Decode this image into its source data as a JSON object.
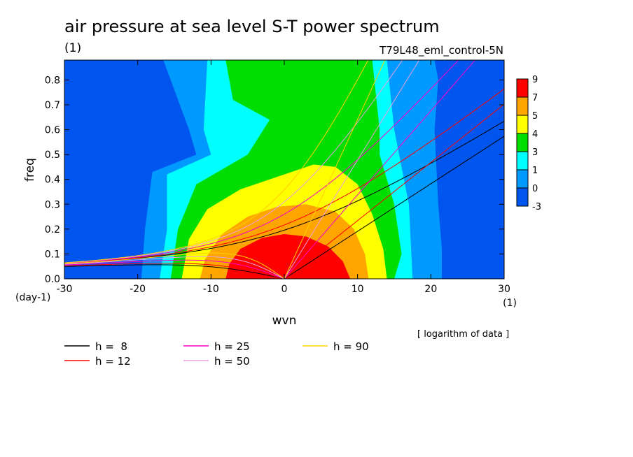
{
  "chart_data": {
    "type": "heatmap",
    "title": "air pressure at sea level S-T power spectrum",
    "subtitle": "T79L48_eml_control-5N",
    "title_unit": "(1)",
    "xlabel": "wvn",
    "xunit": "(1)",
    "ylabel": "freq",
    "yunit": "(day-1)",
    "xlim": [
      -30,
      30
    ],
    "ylim": [
      0,
      0.88
    ],
    "xticks": [
      -30,
      -20,
      -10,
      0,
      10,
      20,
      30
    ],
    "yticks": [
      0.0,
      0.1,
      0.2,
      0.3,
      0.4,
      0.5,
      0.6,
      0.7,
      0.8
    ],
    "xtick_labels": [
      "-30",
      "-20",
      "-10",
      "0",
      "10",
      "20",
      "30"
    ],
    "ytick_labels": [
      "0.0",
      "0.1",
      "0.2",
      "0.3",
      "0.4",
      "0.5",
      "0.6",
      "0.7",
      "0.8"
    ],
    "note": "[ logarithm of data ]",
    "colorbar": {
      "labels": [
        "9",
        "7",
        "5",
        "4",
        "3",
        "1",
        "0",
        "-3"
      ],
      "colors": [
        "#ff0000",
        "#ffa500",
        "#ffff00",
        "#00dd00",
        "#00ffff",
        "#0099ff",
        "#0055ee"
      ]
    },
    "fill_levels": [
      {
        "color": "#0055ee",
        "points": [
          [
            -30,
            0
          ],
          [
            30,
            0
          ],
          [
            30,
            0.88
          ],
          [
            -30,
            0.88
          ]
        ]
      },
      {
        "color": "#0099ff",
        "points": [
          [
            -19.5,
            0
          ],
          [
            21.5,
            0
          ],
          [
            21.5,
            0.12
          ],
          [
            21,
            0.3
          ],
          [
            20.5,
            0.6
          ],
          [
            21,
            0.8
          ],
          [
            20.5,
            0.88
          ],
          [
            -16.5,
            0.88
          ],
          [
            -13,
            0.6
          ],
          [
            -12,
            0.5
          ],
          [
            -18,
            0.43
          ],
          [
            -19,
            0.2
          ]
        ]
      },
      {
        "color": "#00ffff",
        "points": [
          [
            -17,
            0
          ],
          [
            17.5,
            0
          ],
          [
            17,
            0.3
          ],
          [
            15,
            0.6
          ],
          [
            14,
            0.88
          ],
          [
            -10.5,
            0.88
          ],
          [
            -11,
            0.6
          ],
          [
            -10,
            0.5
          ],
          [
            -16,
            0.42
          ],
          [
            -16,
            0.2
          ]
        ]
      },
      {
        "color": "#00dd00",
        "points": [
          [
            -15.5,
            0
          ],
          [
            15,
            0
          ],
          [
            16,
            0.1
          ],
          [
            15,
            0.3
          ],
          [
            13,
            0.5
          ],
          [
            13,
            0.6
          ],
          [
            12,
            0.88
          ],
          [
            -8,
            0.88
          ],
          [
            -7,
            0.72
          ],
          [
            -2,
            0.64
          ],
          [
            -5,
            0.5
          ],
          [
            -12,
            0.38
          ],
          [
            -14.5,
            0.2
          ]
        ]
      },
      {
        "color": "#ffff00",
        "points": [
          [
            -14,
            0
          ],
          [
            14,
            0
          ],
          [
            13.5,
            0.12
          ],
          [
            12,
            0.26
          ],
          [
            10,
            0.38
          ],
          [
            7,
            0.45
          ],
          [
            4,
            0.46
          ],
          [
            0,
            0.42
          ],
          [
            -6,
            0.36
          ],
          [
            -10.5,
            0.28
          ],
          [
            -13,
            0.16
          ]
        ]
      },
      {
        "color": "#ffa500",
        "points": [
          [
            -11.5,
            0
          ],
          [
            11.5,
            0
          ],
          [
            11,
            0.1
          ],
          [
            9.5,
            0.2
          ],
          [
            7,
            0.27
          ],
          [
            3,
            0.3
          ],
          [
            -1,
            0.29
          ],
          [
            -5,
            0.25
          ],
          [
            -8.5,
            0.18
          ],
          [
            -10.8,
            0.08
          ]
        ]
      },
      {
        "color": "#ff0000",
        "points": [
          [
            -8,
            0
          ],
          [
            9,
            0
          ],
          [
            8,
            0.07
          ],
          [
            6,
            0.13
          ],
          [
            3,
            0.17
          ],
          [
            0,
            0.18
          ],
          [
            -3,
            0.165
          ],
          [
            -6,
            0.12
          ],
          [
            -7.5,
            0.06
          ]
        ]
      }
    ],
    "series": [
      {
        "name": "h =  8",
        "h": 8,
        "color": "#000000"
      },
      {
        "name": "h = 12",
        "h": 12,
        "color": "#ff0000"
      },
      {
        "name": "h = 25",
        "h": 25,
        "color": "#ff00cc"
      },
      {
        "name": "h = 50",
        "h": 50,
        "color": "#e8a0e0"
      },
      {
        "name": "h = 90",
        "h": 90,
        "color": "#ffd000"
      }
    ]
  }
}
